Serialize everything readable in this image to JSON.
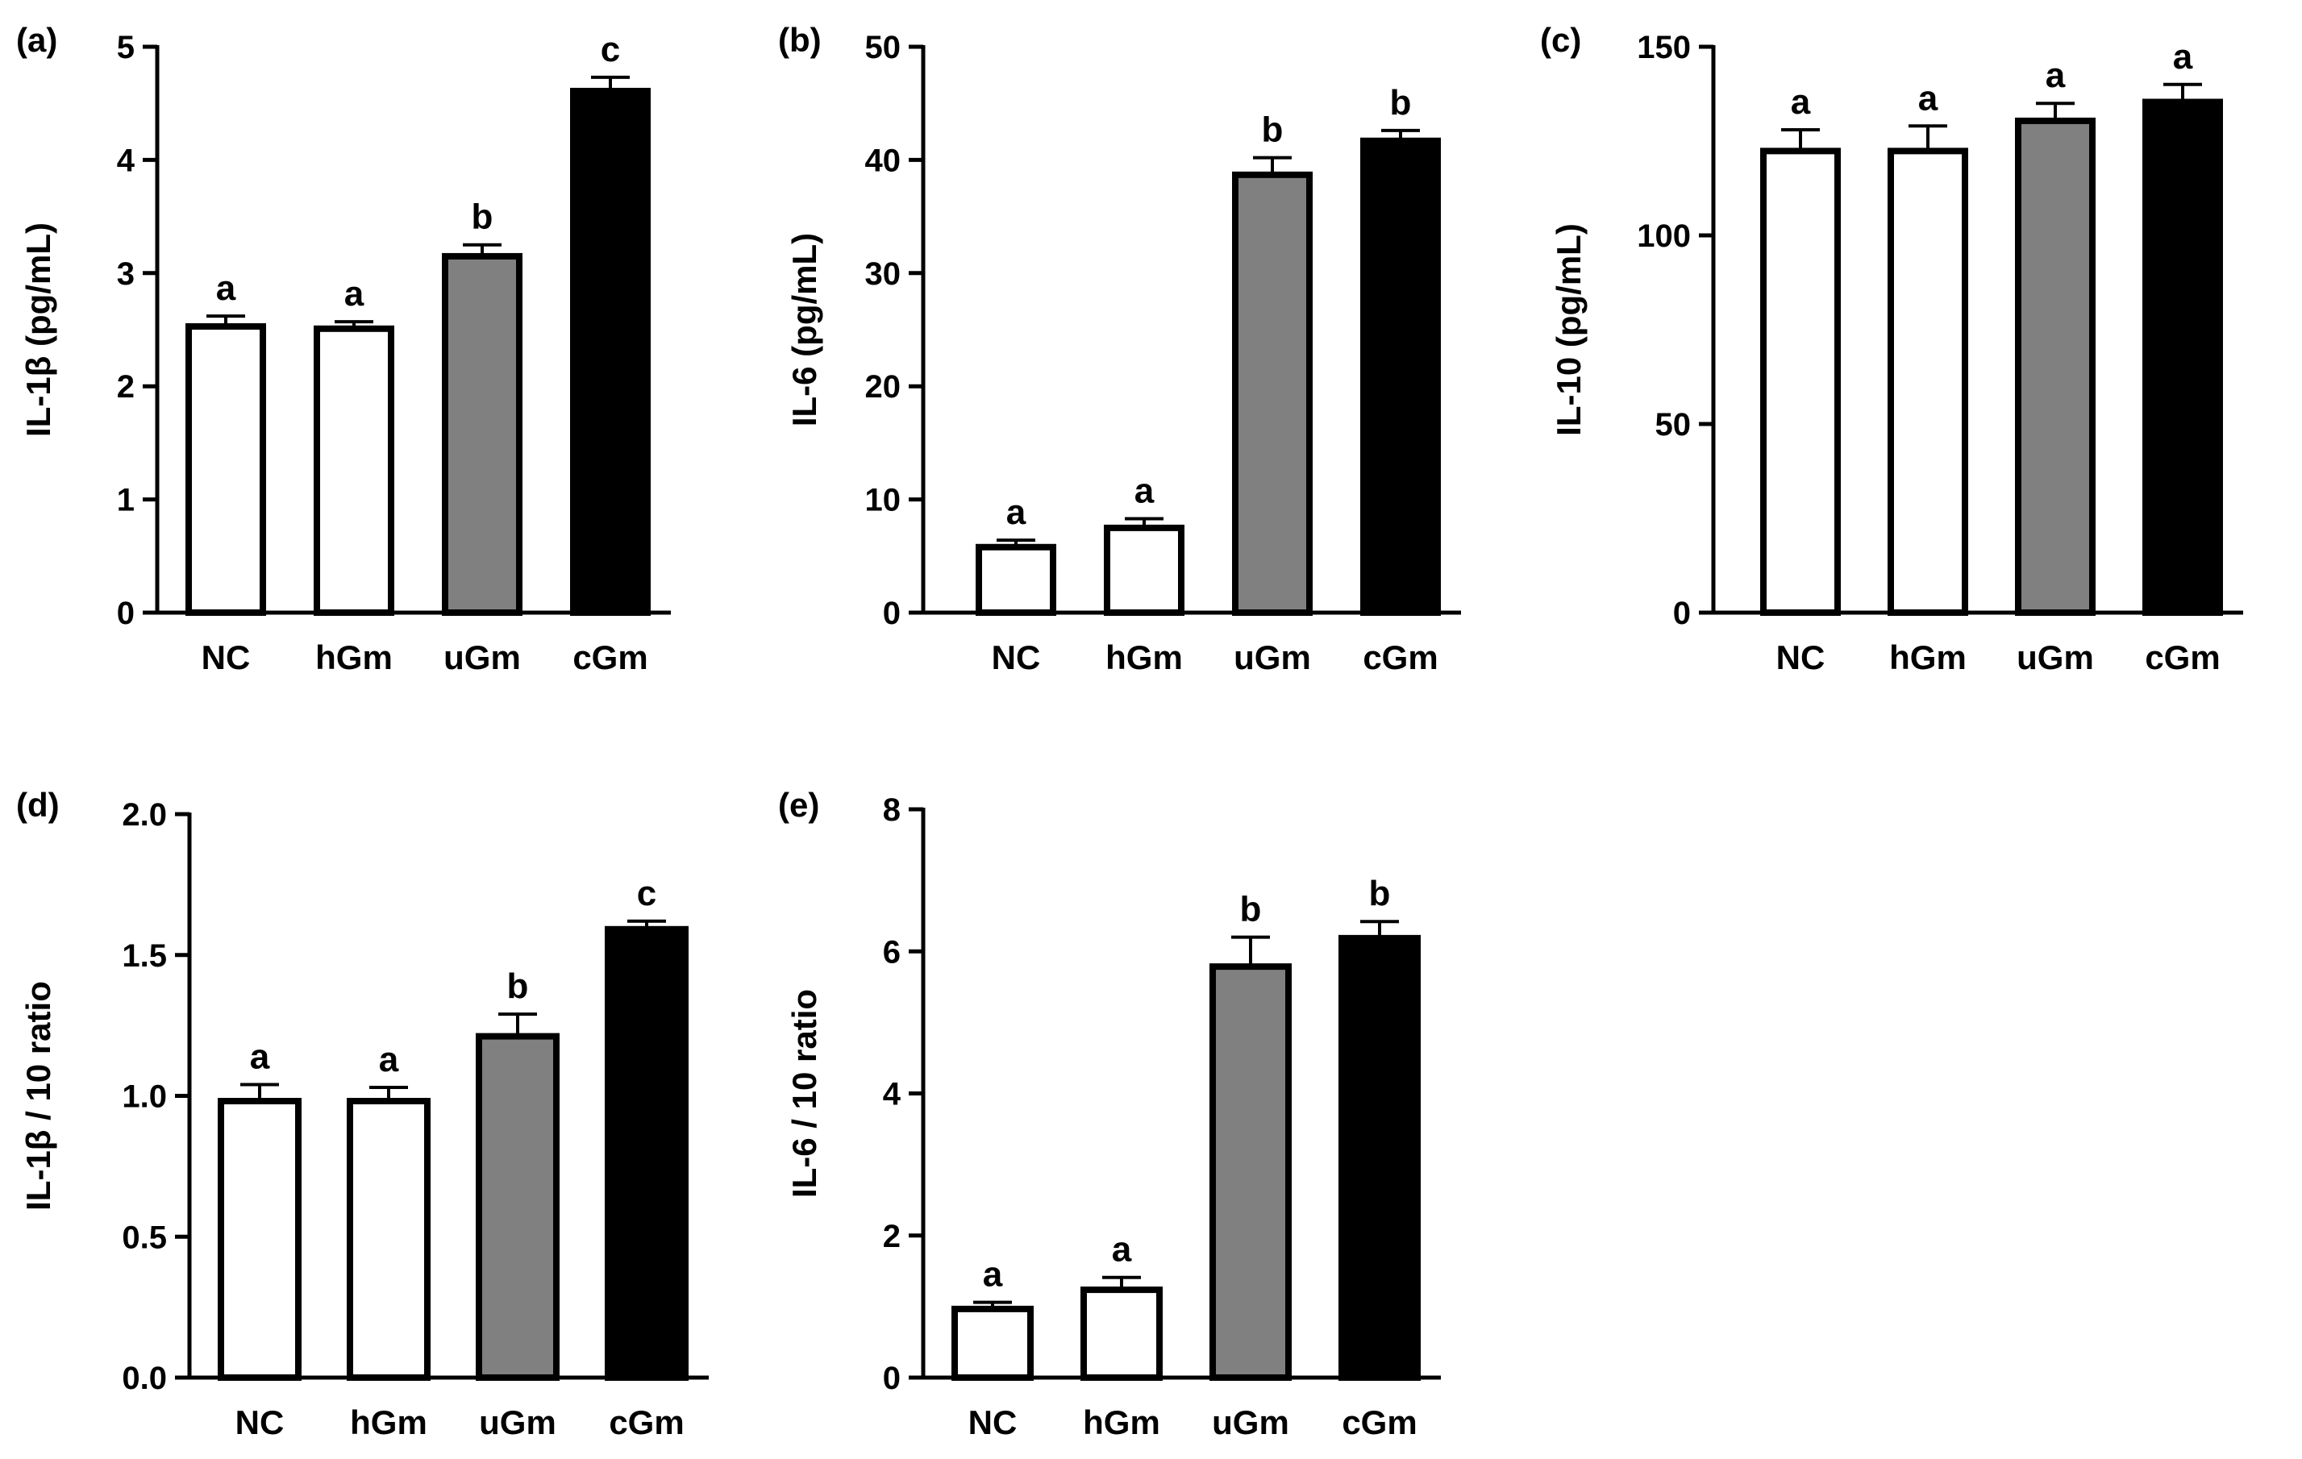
{
  "figure": {
    "colors": {
      "NC": "#ffffff",
      "hGm": "#ffffff",
      "uGm": "#808080",
      "cGm": "#000000",
      "stroke": "#000000"
    }
  },
  "chart_data": [
    {
      "panel": "(a)",
      "type": "bar",
      "ylabel": "IL-1β (pg/mL)",
      "ylim": [
        0,
        5
      ],
      "yticks": [
        "0",
        "1",
        "2",
        "3",
        "4",
        "5"
      ],
      "categories": [
        "NC",
        "hGm",
        "uGm",
        "cGm"
      ],
      "values": [
        2.55,
        2.53,
        3.17,
        4.63
      ],
      "errors": [
        0.07,
        0.04,
        0.08,
        0.1
      ],
      "significance": [
        "a",
        "a",
        "b",
        "c"
      ]
    },
    {
      "panel": "(b)",
      "type": "bar",
      "ylabel": "IL-6 (pg/mL)",
      "ylim": [
        0,
        50
      ],
      "yticks": [
        "0",
        "10",
        "20",
        "30",
        "40",
        "50"
      ],
      "categories": [
        "NC",
        "hGm",
        "uGm",
        "cGm"
      ],
      "values": [
        6.0,
        7.7,
        38.9,
        41.9
      ],
      "errors": [
        0.4,
        0.6,
        1.3,
        0.7
      ],
      "significance": [
        "a",
        "a",
        "b",
        "b"
      ]
    },
    {
      "panel": "(c)",
      "type": "bar",
      "ylabel": "IL-10 (pg/mL)",
      "ylim": [
        0,
        150
      ],
      "yticks": [
        "0",
        "50",
        "100",
        "150"
      ],
      "categories": [
        "NC",
        "hGm",
        "uGm",
        "cGm"
      ],
      "values": [
        123,
        123,
        131,
        136
      ],
      "errors": [
        5,
        6,
        4,
        4
      ],
      "significance": [
        "a",
        "a",
        "a",
        "a"
      ]
    },
    {
      "panel": "(d)",
      "type": "bar",
      "ylabel": "IL-1β / 10 ratio",
      "ylim": [
        0,
        2
      ],
      "yticks": [
        "0.0",
        "0.5",
        "1.0",
        "1.5",
        "2.0"
      ],
      "categories": [
        "NC",
        "hGm",
        "uGm",
        "cGm"
      ],
      "values": [
        0.99,
        0.99,
        1.22,
        1.6
      ],
      "errors": [
        0.05,
        0.04,
        0.07,
        0.02
      ],
      "significance": [
        "a",
        "a",
        "b",
        "c"
      ]
    },
    {
      "panel": "(e)",
      "type": "bar",
      "ylabel": "IL-6 / 10 ratio",
      "ylim": [
        0,
        8
      ],
      "yticks": [
        "0",
        "2",
        "4",
        "6",
        "8"
      ],
      "categories": [
        "NC",
        "hGm",
        "uGm",
        "cGm"
      ],
      "values": [
        1.0,
        1.27,
        5.82,
        6.22
      ],
      "errors": [
        0.06,
        0.14,
        0.38,
        0.2
      ],
      "significance": [
        "a",
        "a",
        "b",
        "b"
      ]
    }
  ]
}
